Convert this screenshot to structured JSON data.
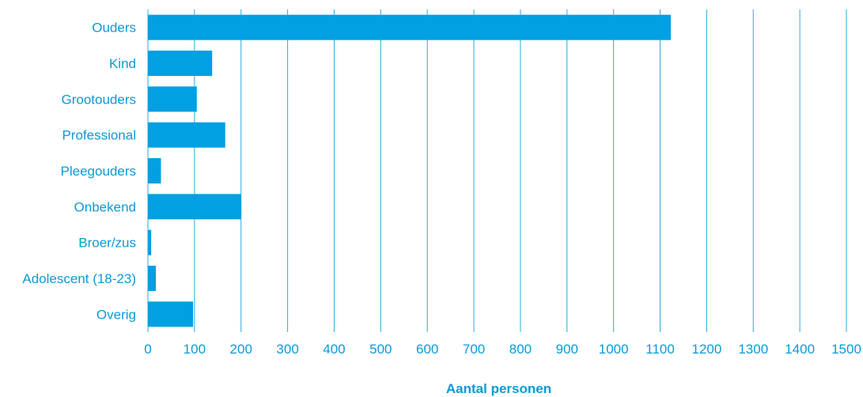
{
  "chart_data": {
    "type": "bar",
    "orientation": "horizontal",
    "categories": [
      "Ouders",
      "Kind",
      "Grootouders",
      "Professional",
      "Pleegouders",
      "Onbekend",
      "Broer/zus",
      "Adolescent (18-23)",
      "Overig"
    ],
    "values": [
      1123,
      138,
      105,
      166,
      28,
      200,
      7,
      17,
      97
    ],
    "xlabel": "Aantal personen",
    "xlim": [
      0,
      1500
    ],
    "xticks": [
      0,
      100,
      200,
      300,
      400,
      500,
      600,
      700,
      800,
      900,
      1000,
      1100,
      1200,
      1300,
      1400,
      1500
    ],
    "grid": "vertical",
    "colors": {
      "bar": "#00a0e2",
      "grid": "#29abe2",
      "text": "#0a9ad8"
    }
  }
}
